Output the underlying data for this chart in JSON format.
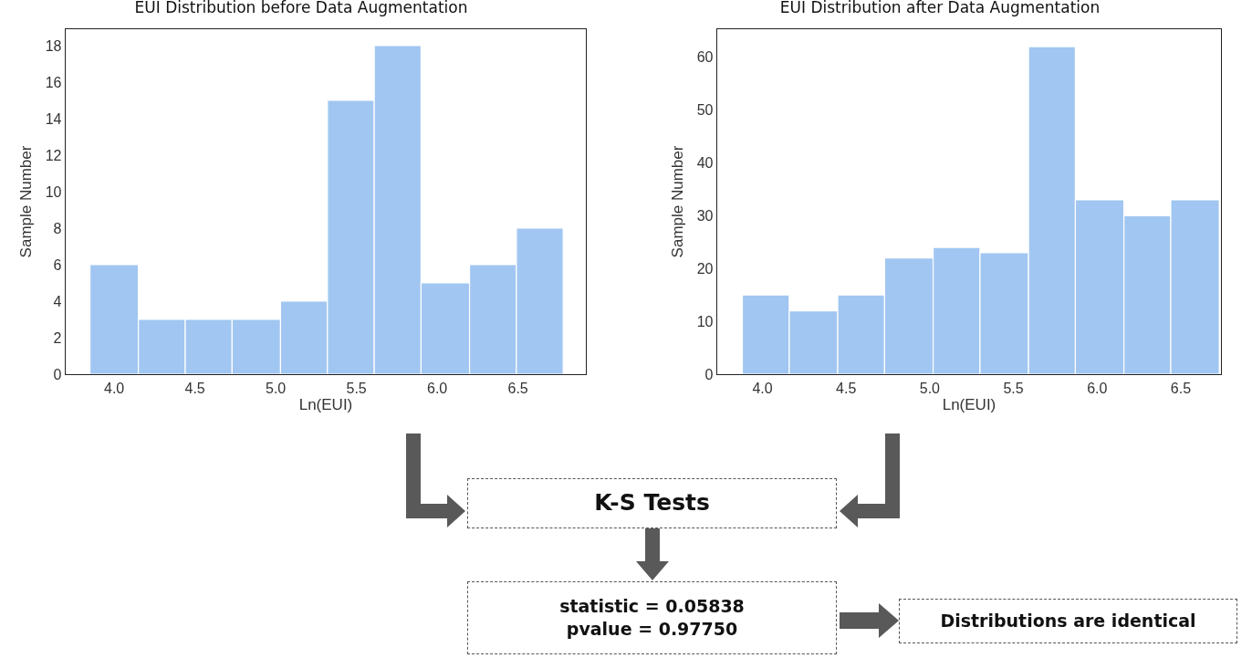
{
  "chart_data": [
    {
      "type": "histogram",
      "title": "EUI Distribution before Data Augmentation",
      "xlabel": "Ln(EUI)",
      "ylabel": "Sample Number",
      "bins": [
        3.85,
        4.15,
        4.44,
        4.73,
        5.03,
        5.32,
        5.61,
        5.9,
        6.2,
        6.49,
        6.78
      ],
      "values": [
        6,
        3,
        3,
        3,
        4,
        15,
        18,
        5,
        6,
        8
      ],
      "color": "#a1c6f1",
      "xlim": [
        3.7,
        6.92
      ],
      "ylim": [
        0,
        18.9
      ],
      "xticks": [
        {
          "value": 4,
          "label": "4.0"
        },
        4.5,
        {
          "value": 5,
          "label": "5.0"
        },
        5.5,
        {
          "value": 6,
          "label": "6.0"
        },
        6.5
      ],
      "yticks": [
        0,
        2,
        4,
        6,
        8,
        10,
        12,
        14,
        16,
        18
      ],
      "grid": false
    },
    {
      "type": "histogram",
      "title": "EUI Distribution after Data Augmentation",
      "xlabel": "Ln(EUI)",
      "ylabel": "Sample Number",
      "bins": [
        3.88,
        4.16,
        4.45,
        4.73,
        5.02,
        5.3,
        5.59,
        5.87,
        6.16,
        6.44,
        6.73
      ],
      "values": [
        15,
        12,
        15,
        22,
        24,
        23,
        62,
        33,
        30,
        33
      ],
      "color": "#a1c6f1",
      "xlim": [
        3.73,
        6.74
      ],
      "ylim": [
        0,
        65.3
      ],
      "xticks": [
        {
          "value": 4,
          "label": "4.0"
        },
        4.5,
        {
          "value": 5,
          "label": "5.0"
        },
        5.5,
        {
          "value": 6,
          "label": "6.0"
        },
        6.5
      ],
      "yticks": [
        0,
        10,
        20,
        30,
        40,
        50,
        60
      ],
      "grid": false
    },
    {
      "type": "other",
      "annotations": [
        "K-S Tests",
        "statistic = 0.05838",
        "pvalue = 0.97750",
        "Distributions are identical"
      ]
    }
  ]
}
